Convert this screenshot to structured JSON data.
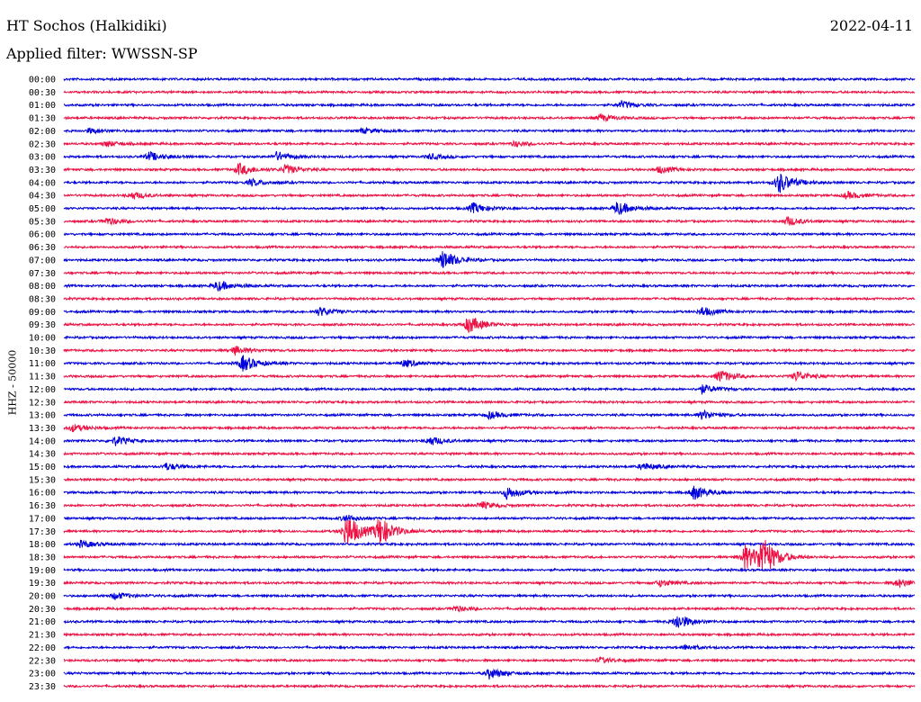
{
  "header": {
    "station": "HT Sochos (Halkidiki)",
    "date": "2022-04-11",
    "filter": "Applied filter: WWSSN-SP"
  },
  "chart_data": {
    "type": "line",
    "title": "HT Sochos (Halkidiki)",
    "ylabel": "HHZ - 50000",
    "xlabel": "",
    "colors": [
      "#0000dd",
      "#ee1144"
    ],
    "rows": [
      {
        "label": "00:00",
        "events": []
      },
      {
        "label": "00:30",
        "events": []
      },
      {
        "label": "01:00",
        "events": [
          {
            "t": 0.655,
            "a": 4
          }
        ]
      },
      {
        "label": "01:30",
        "events": [
          {
            "t": 0.63,
            "a": 4
          }
        ]
      },
      {
        "label": "02:00",
        "events": [
          {
            "t": 0.03,
            "a": 3
          },
          {
            "t": 0.35,
            "a": 3
          }
        ]
      },
      {
        "label": "02:30",
        "events": [
          {
            "t": 0.05,
            "a": 3
          },
          {
            "t": 0.53,
            "a": 3
          }
        ]
      },
      {
        "label": "03:00",
        "events": [
          {
            "t": 0.1,
            "a": 5
          },
          {
            "t": 0.25,
            "a": 5
          },
          {
            "t": 0.43,
            "a": 3
          }
        ]
      },
      {
        "label": "03:30",
        "events": [
          {
            "t": 0.205,
            "a": 7
          },
          {
            "t": 0.26,
            "a": 5
          },
          {
            "t": 0.7,
            "a": 4
          }
        ]
      },
      {
        "label": "04:00",
        "events": [
          {
            "t": 0.22,
            "a": 4
          },
          {
            "t": 0.84,
            "a": 12
          }
        ]
      },
      {
        "label": "04:30",
        "events": [
          {
            "t": 0.08,
            "a": 4
          },
          {
            "t": 0.92,
            "a": 4
          }
        ]
      },
      {
        "label": "05:00",
        "events": [
          {
            "t": 0.48,
            "a": 6
          },
          {
            "t": 0.65,
            "a": 8
          }
        ]
      },
      {
        "label": "05:30",
        "events": [
          {
            "t": 0.05,
            "a": 4
          },
          {
            "t": 0.85,
            "a": 5
          }
        ]
      },
      {
        "label": "06:00",
        "events": []
      },
      {
        "label": "06:30",
        "events": []
      },
      {
        "label": "07:00",
        "events": [
          {
            "t": 0.445,
            "a": 11
          }
        ]
      },
      {
        "label": "07:30",
        "events": []
      },
      {
        "label": "08:00",
        "events": [
          {
            "t": 0.18,
            "a": 6
          }
        ]
      },
      {
        "label": "08:30",
        "events": []
      },
      {
        "label": "09:00",
        "events": [
          {
            "t": 0.3,
            "a": 5
          },
          {
            "t": 0.75,
            "a": 5
          }
        ]
      },
      {
        "label": "09:30",
        "events": [
          {
            "t": 0.475,
            "a": 10
          }
        ]
      },
      {
        "label": "10:00",
        "events": []
      },
      {
        "label": "10:30",
        "events": [
          {
            "t": 0.2,
            "a": 5
          }
        ]
      },
      {
        "label": "11:00",
        "events": [
          {
            "t": 0.21,
            "a": 9
          },
          {
            "t": 0.4,
            "a": 4
          }
        ]
      },
      {
        "label": "11:30",
        "events": [
          {
            "t": 0.77,
            "a": 7
          },
          {
            "t": 0.86,
            "a": 6
          }
        ]
      },
      {
        "label": "12:00",
        "events": [
          {
            "t": 0.75,
            "a": 5
          }
        ]
      },
      {
        "label": "12:30",
        "events": []
      },
      {
        "label": "13:00",
        "events": [
          {
            "t": 0.5,
            "a": 4
          },
          {
            "t": 0.75,
            "a": 5
          }
        ]
      },
      {
        "label": "13:30",
        "events": [
          {
            "t": 0.01,
            "a": 4
          }
        ]
      },
      {
        "label": "14:00",
        "events": [
          {
            "t": 0.06,
            "a": 5
          },
          {
            "t": 0.43,
            "a": 5
          }
        ]
      },
      {
        "label": "14:30",
        "events": []
      },
      {
        "label": "15:00",
        "events": [
          {
            "t": 0.12,
            "a": 4
          },
          {
            "t": 0.68,
            "a": 4
          }
        ]
      },
      {
        "label": "15:30",
        "events": []
      },
      {
        "label": "16:00",
        "events": [
          {
            "t": 0.52,
            "a": 7
          },
          {
            "t": 0.74,
            "a": 8
          }
        ]
      },
      {
        "label": "16:30",
        "events": [
          {
            "t": 0.49,
            "a": 4
          }
        ]
      },
      {
        "label": "17:00",
        "events": [
          {
            "t": 0.33,
            "a": 4
          }
        ]
      },
      {
        "label": "17:30",
        "events": [
          {
            "t": 0.332,
            "a": 20
          },
          {
            "t": 0.37,
            "a": 16
          }
        ]
      },
      {
        "label": "18:00",
        "events": [
          {
            "t": 0.02,
            "a": 4
          }
        ]
      },
      {
        "label": "18:30",
        "events": [
          {
            "t": 0.8,
            "a": 14
          },
          {
            "t": 0.82,
            "a": 22
          }
        ]
      },
      {
        "label": "19:00",
        "events": []
      },
      {
        "label": "19:30",
        "events": [
          {
            "t": 0.7,
            "a": 4
          },
          {
            "t": 0.98,
            "a": 5
          }
        ]
      },
      {
        "label": "20:00",
        "events": [
          {
            "t": 0.06,
            "a": 4
          }
        ]
      },
      {
        "label": "20:30",
        "events": [
          {
            "t": 0.46,
            "a": 3
          }
        ]
      },
      {
        "label": "21:00",
        "events": [
          {
            "t": 0.72,
            "a": 9
          }
        ]
      },
      {
        "label": "21:30",
        "events": []
      },
      {
        "label": "22:00",
        "events": [
          {
            "t": 0.73,
            "a": 3
          }
        ]
      },
      {
        "label": "22:30",
        "events": [
          {
            "t": 0.63,
            "a": 3
          }
        ]
      },
      {
        "label": "23:00",
        "events": [
          {
            "t": 0.5,
            "a": 6
          }
        ]
      },
      {
        "label": "23:30",
        "events": []
      }
    ]
  }
}
